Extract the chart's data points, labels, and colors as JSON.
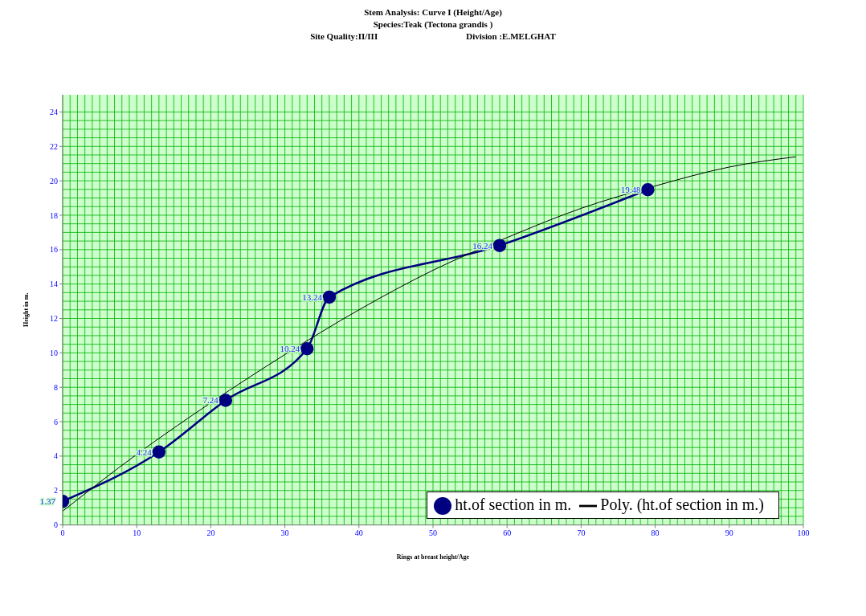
{
  "chart_data": {
    "type": "line",
    "title": "Stem Analysis: Curve  I (Height/Age)",
    "subtitle": "Species:Teak (Tectona grandis )",
    "annotations": [
      "Site Quality:II/III",
      "Division  :E.MELGHAT"
    ],
    "xlabel": "Rings at breast height/Age",
    "ylabel": "Height in m.",
    "xlim": [
      0,
      100
    ],
    "xticks": [
      0,
      10,
      20,
      30,
      40,
      50,
      60,
      70,
      80,
      90,
      100
    ],
    "ylim": [
      0,
      25
    ],
    "yticks": [
      0,
      2,
      4,
      6,
      8,
      10,
      12,
      14,
      16,
      18,
      20,
      22,
      24
    ],
    "grid": true,
    "legend": "bottom right",
    "marker": "circle",
    "line_style": "solid",
    "series": [
      {
        "name": "ht.of section in m.",
        "color": "#000080",
        "x": [
          0,
          13,
          22,
          33,
          36,
          59,
          79
        ],
        "values": [
          1.37,
          4.24,
          7.24,
          10.24,
          13.24,
          16.24,
          19.48
        ],
        "value_labels": [
          "1.37",
          "4.24",
          "7.24",
          "10.24",
          "13.24",
          "16.24",
          "19.48"
        ]
      },
      {
        "name": "Poly. (ht.of section in m.)",
        "color": "#000000",
        "marker": "none",
        "x": [
          0,
          10,
          20,
          30,
          40,
          50,
          60,
          70,
          80,
          90,
          99
        ],
        "values": [
          0.8,
          4.1,
          7.1,
          9.9,
          12.5,
          14.8,
          16.7,
          18.4,
          19.7,
          20.8,
          21.4
        ]
      }
    ]
  }
}
